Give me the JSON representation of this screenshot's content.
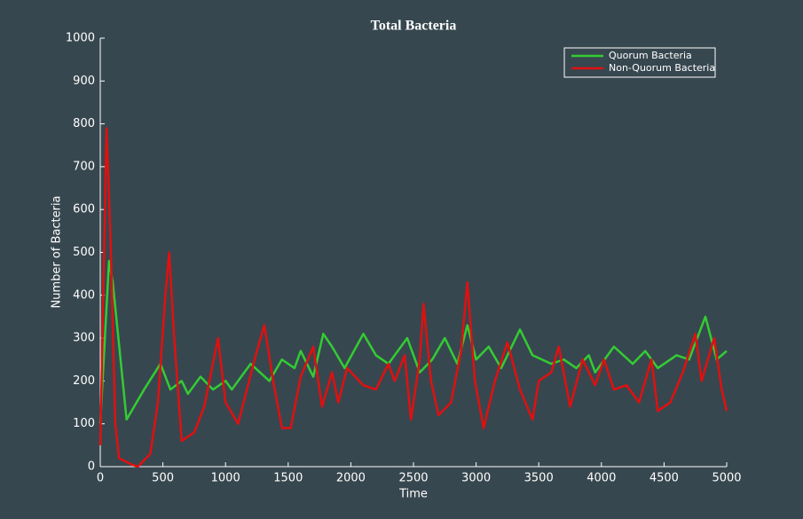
{
  "chart_data": {
    "type": "line",
    "title": "Total Bacteria",
    "x_label": "Time",
    "y_label": "Number of Bacteria",
    "xlim": [
      0,
      5000
    ],
    "ylim": [
      0,
      1000
    ],
    "xticks": [
      0,
      500,
      1000,
      1500,
      2000,
      2500,
      3000,
      3500,
      4000,
      4500,
      5000
    ],
    "yticks": [
      0,
      100,
      200,
      300,
      400,
      500,
      600,
      700,
      800,
      900,
      1000
    ],
    "legend_position": "upper right",
    "series": [
      {
        "name": "Quorum Bacteria",
        "color": "#33cc33",
        "x": [
          0,
          70,
          100,
          210,
          350,
          480,
          560,
          650,
          700,
          800,
          900,
          1000,
          1050,
          1200,
          1350,
          1450,
          1550,
          1600,
          1700,
          1780,
          1850,
          1950,
          2100,
          2200,
          2300,
          2450,
          2550,
          2650,
          2750,
          2850,
          2930,
          3000,
          3100,
          3200,
          3350,
          3450,
          3600,
          3700,
          3800,
          3900,
          3950,
          4100,
          4250,
          4350,
          4450,
          4600,
          4700,
          4830,
          4920,
          5000
        ],
        "values": [
          100,
          480,
          430,
          110,
          180,
          240,
          180,
          200,
          170,
          210,
          180,
          200,
          180,
          240,
          200,
          250,
          230,
          270,
          210,
          310,
          280,
          230,
          310,
          260,
          240,
          300,
          220,
          250,
          300,
          240,
          330,
          250,
          280,
          230,
          320,
          260,
          240,
          250,
          230,
          260,
          220,
          280,
          240,
          270,
          230,
          260,
          250,
          350,
          250,
          270
        ]
      },
      {
        "name": "Non-Quorum Bacteria",
        "color": "#e01010",
        "x": [
          0,
          50,
          80,
          120,
          150,
          250,
          300,
          400,
          460,
          520,
          550,
          590,
          650,
          750,
          830,
          940,
          1000,
          1100,
          1250,
          1310,
          1380,
          1450,
          1520,
          1600,
          1700,
          1770,
          1850,
          1900,
          1970,
          2100,
          2200,
          2300,
          2350,
          2430,
          2480,
          2550,
          2580,
          2640,
          2700,
          2800,
          2880,
          2930,
          2990,
          3060,
          3150,
          3250,
          3350,
          3450,
          3500,
          3600,
          3660,
          3750,
          3850,
          3950,
          4020,
          4100,
          4200,
          4300,
          4400,
          4450,
          4550,
          4650,
          4750,
          4800,
          4900,
          4960,
          5000
        ],
        "values": [
          50,
          790,
          550,
          100,
          20,
          5,
          0,
          30,
          150,
          400,
          500,
          300,
          60,
          80,
          140,
          300,
          150,
          100,
          270,
          330,
          200,
          90,
          90,
          210,
          280,
          140,
          220,
          150,
          230,
          190,
          180,
          240,
          200,
          260,
          110,
          250,
          380,
          200,
          120,
          150,
          270,
          430,
          200,
          90,
          200,
          290,
          180,
          110,
          200,
          220,
          280,
          140,
          250,
          190,
          250,
          180,
          190,
          150,
          250,
          130,
          150,
          220,
          310,
          200,
          300,
          180,
          130
        ]
      }
    ]
  }
}
